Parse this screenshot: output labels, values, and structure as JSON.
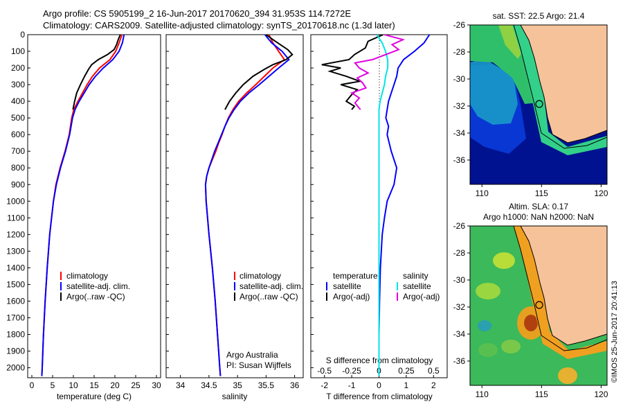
{
  "header": {
    "line1": "Argo profile: CS 5905199_2 16-Jun-2017 20170620_394 31.953S 114.7272E",
    "line2": "Climatology: CARS2009. Satellite-adjusted climatology: synTS_20170618.nc (1.3d later)"
  },
  "colors": {
    "climatology": "#ff0000",
    "satellite": "#0000ff",
    "argo": "#000000",
    "sat_salinity_diff": "#00e5e5",
    "argo_salinity_diff": "#e000e0",
    "land": "#f5c29a"
  },
  "chart_data": [
    {
      "type": "line",
      "xlabel": "temperature (deg C)",
      "xlim": [
        -1,
        31
      ],
      "xticks": [
        "0",
        "5",
        "10",
        "15",
        "20",
        "25",
        "30"
      ],
      "ylim": [
        0,
        2060
      ],
      "yticks": [
        "0",
        "100",
        "200",
        "300",
        "400",
        "500",
        "600",
        "700",
        "800",
        "900",
        "1000",
        "1100",
        "1200",
        "1300",
        "1400",
        "1500",
        "1600",
        "1700",
        "1800",
        "1900",
        "2000"
      ],
      "legend": [
        "climatology",
        "satellite-adj. clim.",
        "Argo(..raw -QC)"
      ],
      "series": [
        {
          "name": "climatology",
          "depth": [
            0,
            50,
            100,
            150,
            200,
            250,
            300,
            350,
            400,
            450,
            500,
            600,
            700,
            800,
            900,
            1000,
            1200,
            1400,
            1600,
            1800,
            2000,
            2050
          ],
          "values": [
            21.7,
            21.0,
            20.2,
            18.8,
            16.3,
            14.6,
            13.3,
            12.2,
            11.1,
            10.1,
            9.6,
            9.0,
            8.0,
            6.8,
            5.8,
            5.2,
            4.3,
            3.7,
            3.2,
            2.8,
            2.5,
            2.4
          ]
        },
        {
          "name": "satellite-adj. clim.",
          "depth": [
            0,
            50,
            100,
            150,
            200,
            250,
            300,
            350,
            400,
            450,
            500,
            600,
            700,
            800,
            900,
            1000,
            1200,
            1400,
            1600,
            1800,
            2000,
            2050
          ],
          "values": [
            22.2,
            21.8,
            21.0,
            19.5,
            17.2,
            15.3,
            13.8,
            12.6,
            11.4,
            10.4,
            9.8,
            9.1,
            8.1,
            6.9,
            5.9,
            5.2,
            4.3,
            3.7,
            3.2,
            2.8,
            2.5,
            2.4
          ]
        },
        {
          "name": "Argo(..raw -QC)",
          "depth": [
            0,
            30,
            60,
            90,
            120,
            150,
            180,
            210,
            250,
            300,
            350,
            400,
            450
          ],
          "values": [
            21.3,
            20.8,
            20.4,
            19.8,
            18.2,
            16.0,
            14.4,
            13.6,
            12.7,
            11.7,
            10.8,
            10.3,
            9.9
          ]
        }
      ]
    },
    {
      "type": "line",
      "xlabel": "salinity",
      "xlim": [
        33.75,
        36.15
      ],
      "xticks": [
        "34",
        "34.5",
        "35",
        "35.5",
        "36"
      ],
      "ylim": [
        0,
        2060
      ],
      "legend": [
        "climatology",
        "satellite-adj. clim.",
        "Argo(..raw -QC)"
      ],
      "annotation": [
        "Argo Australia",
        "PI: Susan Wijffels"
      ],
      "series": [
        {
          "name": "climatology",
          "depth": [
            0,
            50,
            100,
            150,
            200,
            250,
            300,
            350,
            400,
            450,
            500,
            550,
            600,
            650,
            700,
            750,
            800,
            850,
            900,
            1000,
            1200,
            1400,
            1600,
            1800,
            2000,
            2050
          ],
          "values": [
            35.55,
            35.62,
            35.72,
            35.82,
            35.62,
            35.47,
            35.32,
            35.16,
            35.02,
            34.92,
            34.84,
            34.78,
            34.73,
            34.67,
            34.62,
            34.56,
            34.5,
            34.46,
            34.44,
            34.45,
            34.5,
            34.56,
            34.61,
            34.65,
            34.69,
            34.7
          ]
        },
        {
          "name": "satellite-adj. clim.",
          "depth": [
            0,
            50,
            100,
            150,
            200,
            250,
            300,
            350,
            400,
            450,
            500,
            550,
            600,
            650,
            700,
            750,
            800,
            850,
            900,
            1000,
            1200,
            1400,
            1600,
            1800,
            2000,
            2050
          ],
          "values": [
            35.48,
            35.6,
            35.78,
            35.9,
            35.72,
            35.55,
            35.38,
            35.2,
            35.05,
            34.94,
            34.85,
            34.78,
            34.72,
            34.66,
            34.6,
            34.55,
            34.5,
            34.46,
            34.44,
            34.45,
            34.5,
            34.56,
            34.61,
            34.65,
            34.69,
            34.7
          ]
        },
        {
          "name": "Argo(..raw -QC)",
          "depth": [
            0,
            30,
            60,
            90,
            120,
            150,
            180,
            210,
            250,
            300,
            350,
            400,
            450
          ],
          "values": [
            35.5,
            35.62,
            35.75,
            35.88,
            35.96,
            35.85,
            35.62,
            35.46,
            35.27,
            35.1,
            34.97,
            34.86,
            34.78
          ]
        }
      ]
    },
    {
      "type": "line",
      "xlabel": "T difference from climatology",
      "xlabel_top": "S difference from climatology",
      "xlim": [
        -2.5,
        2.5
      ],
      "xticks": [
        "-2",
        "-1",
        "0",
        "1",
        "2"
      ],
      "xticks_top": [
        "-0.5",
        "-0.25",
        "0",
        "0.25",
        "0.5"
      ],
      "ylim": [
        0,
        2060
      ],
      "legend_left_title": "temperature",
      "legend_right_title": "salinity",
      "legend": [
        "satellite",
        "Argo(-adj)",
        "satellite",
        "Argo(-adj)"
      ],
      "series": [
        {
          "name": "satellite",
          "quantity": "temperature",
          "depth": [
            0,
            50,
            100,
            150,
            200,
            250,
            300,
            350,
            400,
            450,
            500,
            550,
            600,
            700,
            800,
            900,
            1000,
            1100,
            1200,
            1400,
            1600,
            1800,
            2000,
            2050
          ],
          "values": [
            1.85,
            1.65,
            1.3,
            0.9,
            0.7,
            0.65,
            0.55,
            0.45,
            0.35,
            0.3,
            0.25,
            0.35,
            0.3,
            0.45,
            0.65,
            0.55,
            0.3,
            0.2,
            0.12,
            0.05,
            0.02,
            0.0,
            0.0,
            0.0
          ]
        },
        {
          "name": "Argo(-adj)",
          "quantity": "temperature",
          "depth": [
            0,
            40,
            80,
            120,
            150,
            180,
            200,
            220,
            250,
            280,
            300,
            330,
            360,
            400,
            430,
            450
          ],
          "values": [
            0.15,
            -0.4,
            -0.5,
            -0.9,
            -1.1,
            -2.1,
            -1.4,
            -1.8,
            -1.2,
            -0.7,
            -1.4,
            -0.8,
            -1.0,
            -1.2,
            -0.9,
            -1.0
          ]
        },
        {
          "name": "satellite",
          "quantity": "salinity",
          "depth": [
            0,
            50,
            100,
            150,
            200,
            250,
            300,
            350,
            400,
            450,
            500,
            600,
            800,
            1000,
            1200,
            1500,
            2000,
            2050
          ],
          "values": [
            -0.02,
            0.03,
            0.06,
            0.08,
            0.08,
            0.06,
            0.05,
            0.03,
            0.01,
            0.0,
            0.0,
            0.0,
            0.0,
            0.0,
            0.0,
            0.0,
            0.0,
            0.0
          ]
        },
        {
          "name": "Argo(-adj)",
          "quantity": "salinity",
          "depth": [
            0,
            30,
            60,
            90,
            120,
            150,
            170,
            200,
            230,
            260,
            290,
            320,
            350,
            380,
            410,
            450
          ],
          "values": [
            0.05,
            0.22,
            0.12,
            0.18,
            0.06,
            -0.06,
            -0.22,
            -0.18,
            -0.1,
            -0.2,
            -0.15,
            -0.12,
            -0.25,
            -0.18,
            -0.22,
            -0.17
          ]
        }
      ]
    },
    {
      "type": "heatmap",
      "title": "sat. SST: 22.5 Argo: 21.4",
      "xticks": [
        "110",
        "115",
        "120"
      ],
      "yticks": [
        "-26",
        "-28",
        "-30",
        "-32",
        "-34",
        "-36"
      ],
      "xlim": [
        109,
        120.5
      ],
      "ylim": [
        -37.8,
        -26
      ],
      "marker": {
        "lon": 114.73,
        "lat": -31.95
      }
    },
    {
      "type": "heatmap",
      "title_line1": "Altim. SLA: 0.17",
      "title_line2": "Argo h1000: NaN h2000: NaN",
      "xticks": [
        "110",
        "115",
        "120"
      ],
      "yticks": [
        "-26",
        "-28",
        "-30",
        "-32",
        "-34",
        "-36"
      ],
      "xlim": [
        109,
        120.5
      ],
      "ylim": [
        -37.8,
        -26
      ],
      "marker": {
        "lon": 114.73,
        "lat": -31.95
      }
    }
  ],
  "credit": "©IMOS 25-Jun-2017 20:41:13"
}
